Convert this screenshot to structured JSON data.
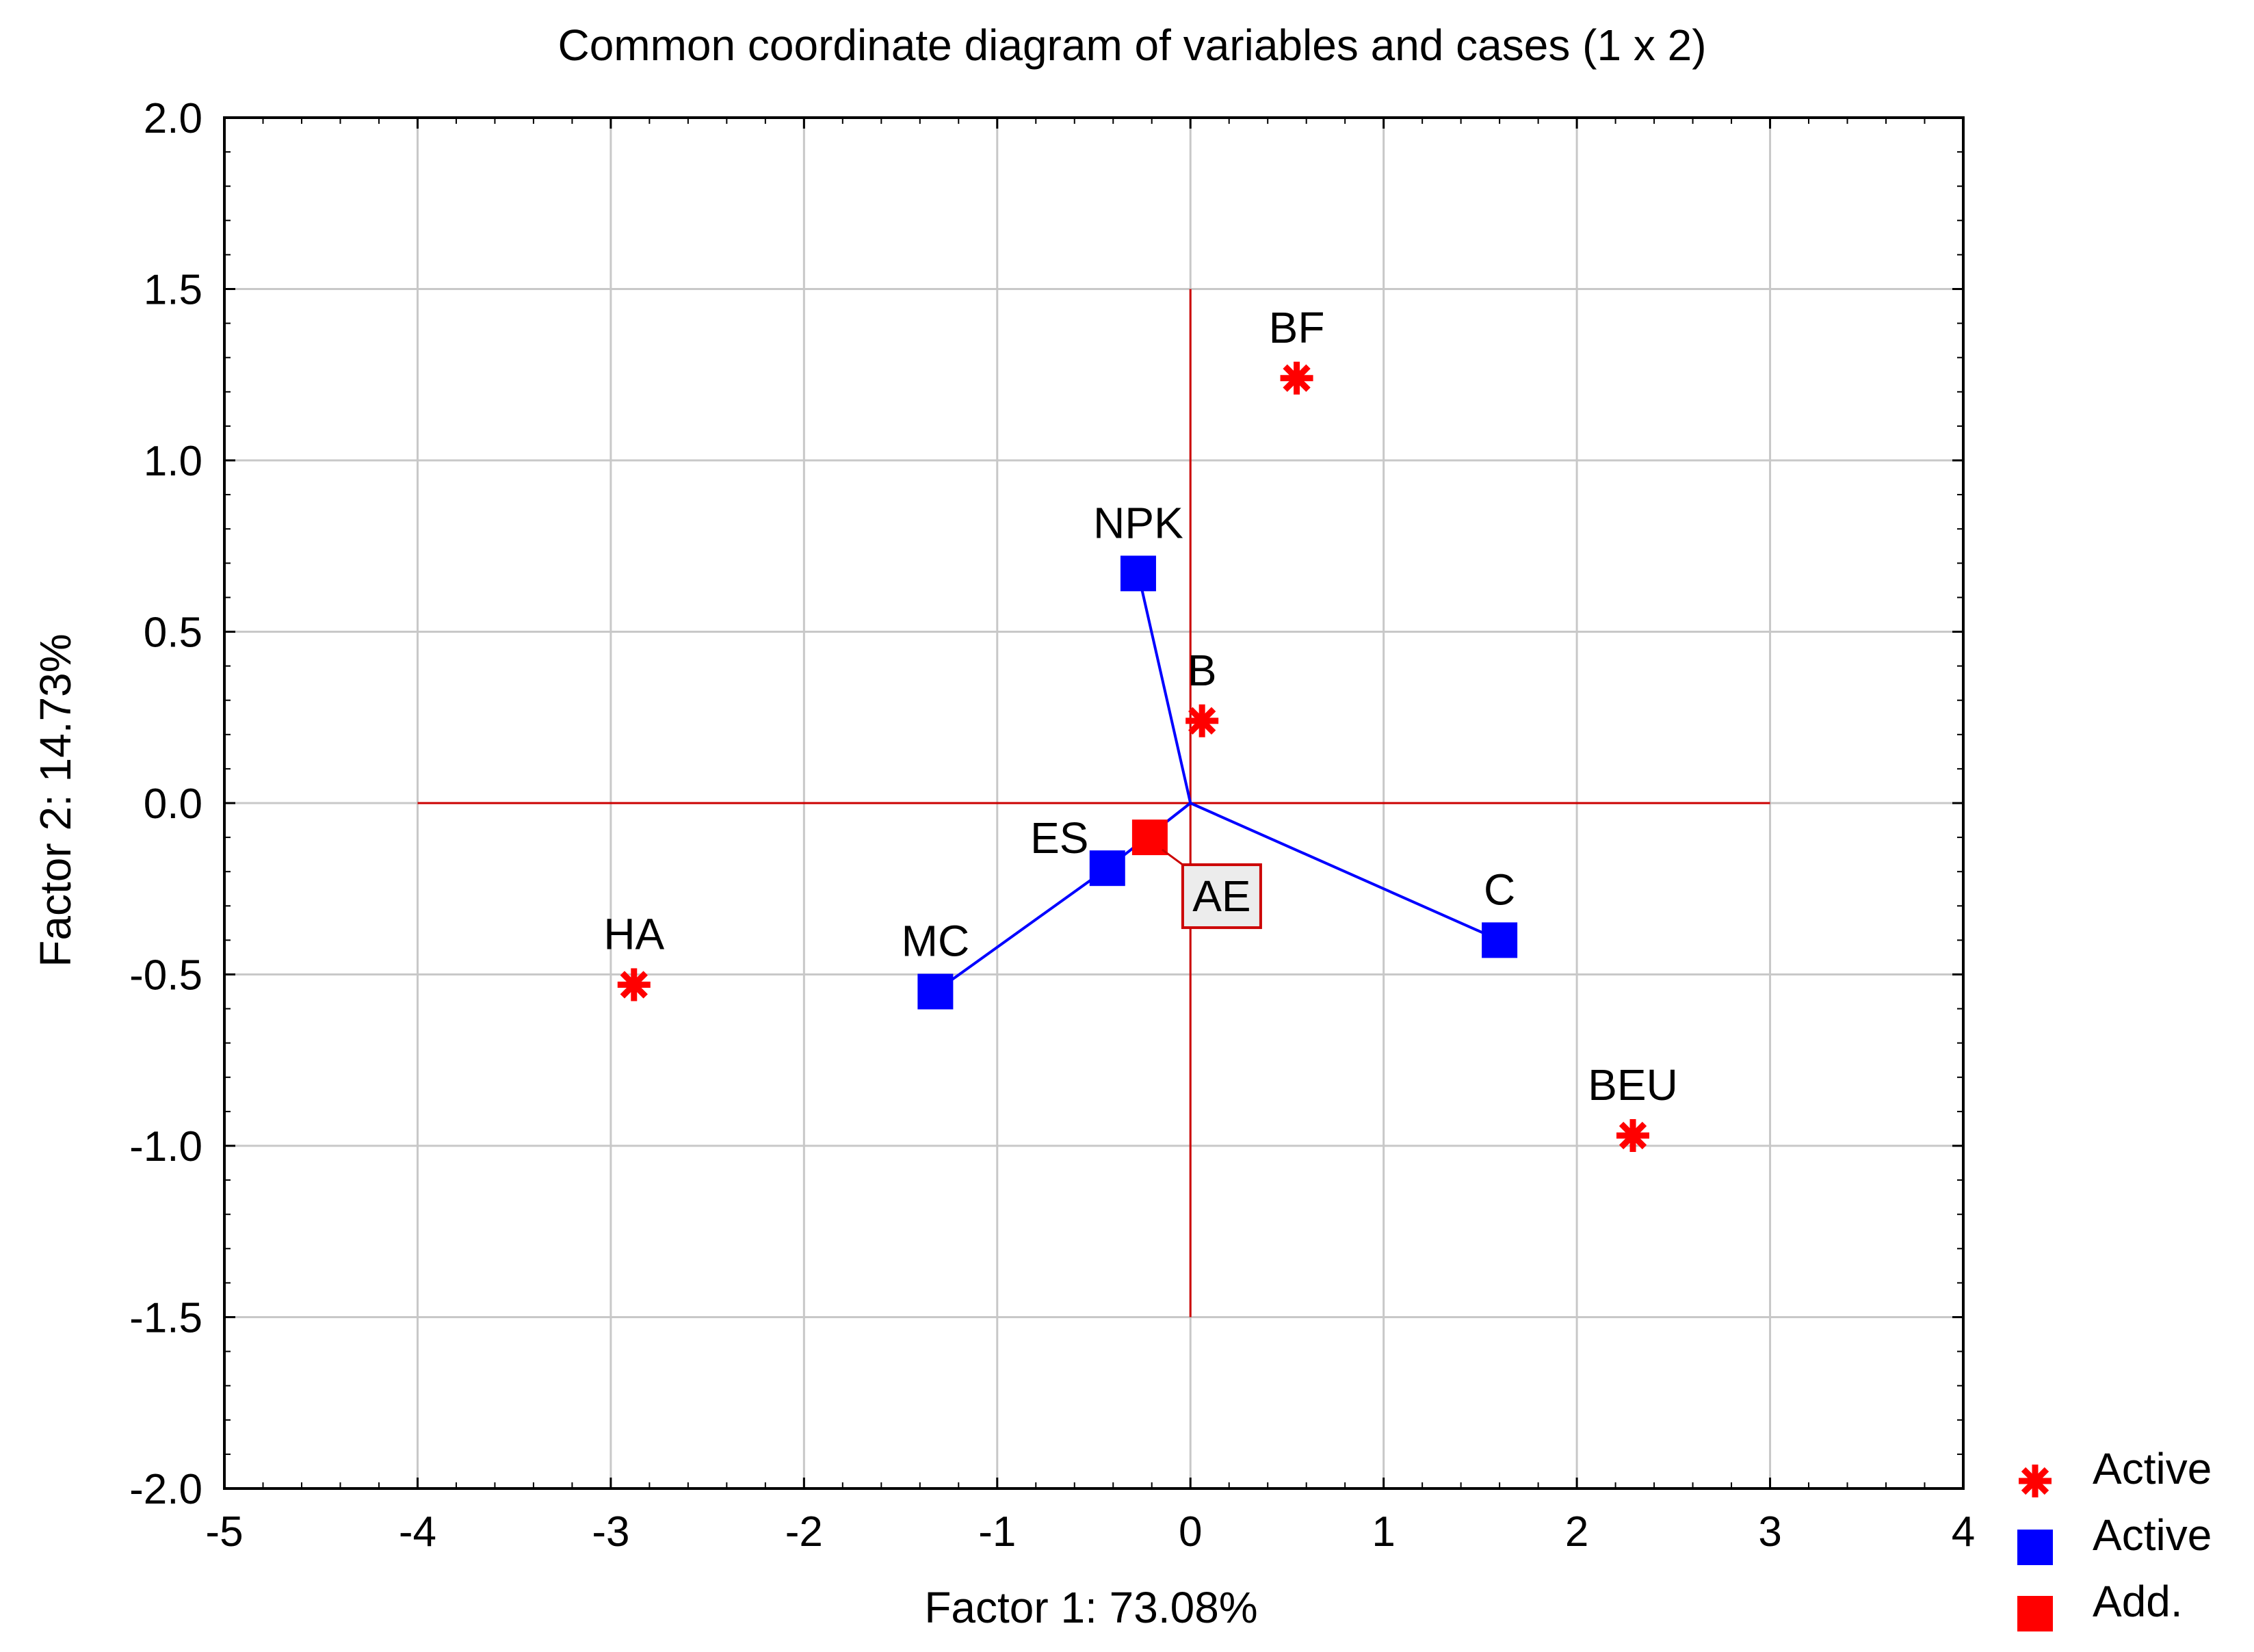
{
  "chart_data": {
    "type": "scatter",
    "title": "Common coordinate diagram of variables and cases (1 x 2)",
    "xlabel": "Factor 1: 73.08%",
    "ylabel": "Factor 2: 14.73%",
    "xlim": [
      -5,
      4
    ],
    "ylim": [
      -2.0,
      2.0
    ],
    "xticks": [
      "-5",
      "-4",
      "-3",
      "-2",
      "-1",
      "0",
      "1",
      "2",
      "3",
      "4"
    ],
    "yticks": [
      "2.0",
      "1.5",
      "1.0",
      "0.5",
      "0.0",
      "-0.5",
      "-1.0",
      "-1.5",
      "-2.0"
    ],
    "grid": true,
    "reference_lines": {
      "horizontal": {
        "y": 0,
        "x_from": -4,
        "x_to": 3
      },
      "vertical": {
        "x": 0,
        "y_from": -1.5,
        "y_to": 1.5
      }
    },
    "series": [
      {
        "name": "Active",
        "marker": "asterisk",
        "color": "#ff0000",
        "points": [
          {
            "label": "BF",
            "x": 0.55,
            "y": 1.24
          },
          {
            "label": "B",
            "x": 0.06,
            "y": 0.24
          },
          {
            "label": "HA",
            "x": -2.88,
            "y": -0.53
          },
          {
            "label": "BEU",
            "x": 2.29,
            "y": -0.97
          }
        ]
      },
      {
        "name": "Active",
        "marker": "square",
        "color": "#0000ff",
        "points": [
          {
            "label": "NPK",
            "x": -0.27,
            "y": 0.67
          },
          {
            "label": "ES",
            "x": -0.43,
            "y": -0.19
          },
          {
            "label": "MC",
            "x": -1.32,
            "y": -0.55
          },
          {
            "label": "C",
            "x": 1.6,
            "y": -0.4
          }
        ]
      },
      {
        "name": "Add.",
        "marker": "square",
        "color": "#ff0000",
        "points": [
          {
            "label": "AE",
            "x": -0.21,
            "y": -0.1
          }
        ]
      }
    ],
    "vector_lines": [
      {
        "from": [
          0,
          0
        ],
        "to": [
          -0.27,
          0.67
        ],
        "color": "#0000ff"
      },
      {
        "from": [
          0,
          0
        ],
        "to": [
          1.6,
          -0.4
        ],
        "color": "#0000ff"
      },
      {
        "from": [
          0,
          0
        ],
        "to": [
          -0.43,
          -0.19
        ],
        "color": "#0000ff"
      },
      {
        "from": [
          -0.43,
          -0.19
        ],
        "to": [
          -1.32,
          -0.55
        ],
        "color": "#0000ff"
      }
    ],
    "legend_position": "bottom-right"
  },
  "colors": {
    "reference_line": "#cc0000",
    "vector_line": "#0000ff",
    "grid": "#c8c8c8",
    "label_box_border": "#cc0000",
    "label_box_fill": "#ececec"
  }
}
